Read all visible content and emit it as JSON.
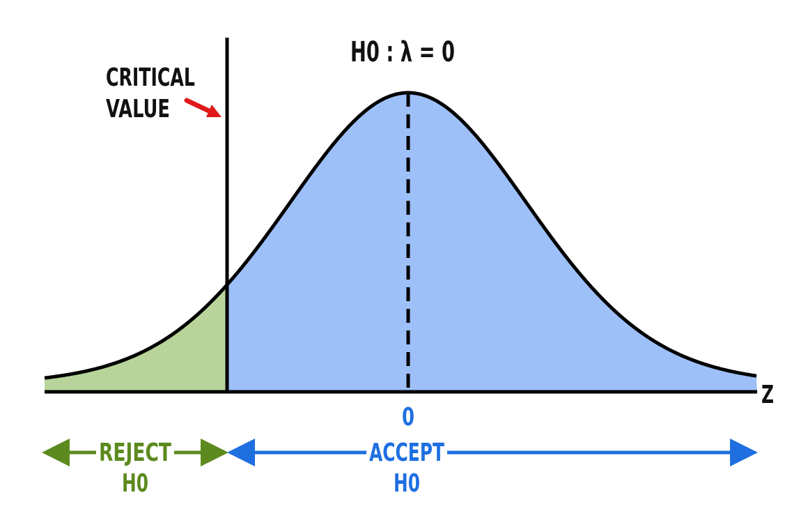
{
  "hypothesis": "H0 : λ = 0",
  "critical_value": {
    "line1": "CRITICAL",
    "line2": "VALUE"
  },
  "axis": {
    "variable": "Z",
    "center_tick": "0"
  },
  "regions": {
    "reject": {
      "line1": "REJECT",
      "line2": "H0"
    },
    "accept": {
      "line1": "ACCEPT",
      "line2": "H0"
    }
  },
  "colors": {
    "accept_fill": "#9ec0f9",
    "reject_fill": "#b8d49a",
    "curve": "#000000",
    "arrow_red": "#e01818",
    "accept_text": "#1f6fe0",
    "reject_text": "#5c8a1e"
  }
}
